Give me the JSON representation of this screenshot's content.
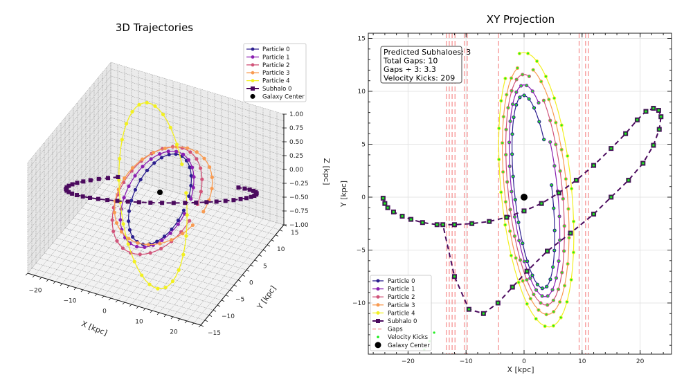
{
  "figure": {
    "background": "#ffffff"
  },
  "chart_data": [
    {
      "type": "line",
      "projection": "3d",
      "title": "3D Trajectories",
      "xlabel": "X [kpc]",
      "ylabel": "Y [kpc]",
      "zlabel": "Z [kpc]",
      "xlim": [
        -25,
        25
      ],
      "ylim": [
        -15,
        15
      ],
      "zlim": [
        -1.0,
        1.0
      ],
      "xticks": [
        "−20",
        "−10",
        "0",
        "10",
        "20"
      ],
      "yticks": [
        "−15",
        "−10",
        "−5",
        "0",
        "5",
        "10",
        "15"
      ],
      "zticks": [
        "1.00",
        "0.75",
        "0.50",
        "0.25",
        "0.00",
        "−0.25",
        "−0.50",
        "−0.75",
        "−1.00"
      ],
      "grid": true,
      "legend_position": "top-right",
      "legend": [
        {
          "label": "Particle 0",
          "color": "#2c1f8f",
          "marker": "circle"
        },
        {
          "label": "Particle 1",
          "color": "#8a1fb0",
          "marker": "circle"
        },
        {
          "label": "Particle 2",
          "color": "#d1547a",
          "marker": "circle"
        },
        {
          "label": "Particle 3",
          "color": "#f89b52",
          "marker": "circle"
        },
        {
          "label": "Particle 4",
          "color": "#f2f020",
          "marker": "circle"
        },
        {
          "label": "Subhalo 0",
          "color": "#4b0a5e",
          "marker": "square",
          "linestyle": "dashed"
        },
        {
          "label": "Galaxy Center",
          "color": "#000000",
          "marker": "circle"
        }
      ],
      "galaxy_center": [
        0,
        0,
        0
      ]
    },
    {
      "type": "line",
      "title": "XY Projection",
      "xlabel": "X [kpc]",
      "ylabel": "Y [kpc]",
      "xlim": [
        -27,
        25.5
      ],
      "ylim": [
        -14.8,
        15.5
      ],
      "xticks": [
        -20,
        -10,
        0,
        10,
        20
      ],
      "xtick_labels": [
        "−20",
        "−10",
        "0",
        "10",
        "20"
      ],
      "yticks": [
        15,
        10,
        5,
        0,
        -5,
        -10
      ],
      "ytick_labels": [
        "15",
        "10",
        "5",
        "0",
        "−5",
        "−10"
      ],
      "grid": true,
      "legend_position": "bottom-left",
      "legend": [
        {
          "label": "Particle 0",
          "color": "#2c1f8f",
          "marker": "circle"
        },
        {
          "label": "Particle 1",
          "color": "#8a1fb0",
          "marker": "circle"
        },
        {
          "label": "Particle 2",
          "color": "#d1547a",
          "marker": "circle"
        },
        {
          "label": "Particle 3",
          "color": "#f89b52",
          "marker": "circle"
        },
        {
          "label": "Particle 4",
          "color": "#f2f020",
          "marker": "circle"
        },
        {
          "label": "Subhalo 0",
          "color": "#4b0a5e",
          "marker": "square",
          "linestyle": "dashed"
        },
        {
          "label": "Gaps",
          "color": "#f7a1a1",
          "linestyle": "dashed"
        },
        {
          "label": "Velocity Kicks",
          "color": "#22ee22",
          "marker": "dot"
        },
        {
          "label": "Galaxy Center",
          "color": "#000000",
          "marker": "circle"
        }
      ],
      "info_box": [
        "Predicted Subhaloes: 3",
        "Total Gaps: 10",
        "Gaps ÷ 3: 3.3",
        "Velocity Kicks: 209"
      ],
      "gap_x": [
        -13.4,
        -12.9,
        -12.4,
        -11.9,
        -10.3,
        -9.8,
        -4.4,
        9.5,
        10.6,
        11.1
      ],
      "galaxy_center": [
        0,
        0
      ],
      "particles": [
        {
          "name": "Particle 0",
          "center": [
            1.6,
            0.5
          ],
          "a": 3.2,
          "b": 9.3,
          "angle_deg": 12,
          "phase0": 0.5
        },
        {
          "name": "Particle 1",
          "center": [
            1.8,
            0.6
          ],
          "a": 3.9,
          "b": 10.2,
          "angle_deg": 12,
          "phase0": 0.9
        },
        {
          "name": "Particle 2",
          "center": [
            1.9,
            0.7
          ],
          "a": 4.6,
          "b": 11.1,
          "angle_deg": 12,
          "phase0": 1.3
        },
        {
          "name": "Particle 3",
          "center": [
            2.0,
            0.7
          ],
          "a": 5.3,
          "b": 12.0,
          "angle_deg": 12,
          "phase0": 1.7
        },
        {
          "name": "Particle 4",
          "center": [
            2.1,
            0.7
          ],
          "a": 6.0,
          "b": 13.2,
          "angle_deg": 12,
          "phase0": 2.1
        }
      ],
      "subhalo_track": [
        [
          -24.3,
          -0.1
        ],
        [
          -24.0,
          -0.6
        ],
        [
          -23.5,
          -1.0
        ],
        [
          -22.5,
          -1.4
        ],
        [
          -21.0,
          -1.8
        ],
        [
          -19.5,
          -2.1
        ],
        [
          -17.5,
          -2.4
        ],
        [
          -15.0,
          -2.6
        ],
        [
          -12.0,
          -2.6
        ],
        [
          -9.0,
          -2.5
        ],
        [
          -6.0,
          -2.3
        ],
        [
          -3.0,
          -1.9
        ],
        [
          0.0,
          -1.3
        ],
        [
          3.0,
          -0.6
        ],
        [
          6.0,
          0.4
        ],
        [
          9.0,
          1.6
        ],
        [
          12.0,
          3.0
        ],
        [
          15.0,
          4.6
        ],
        [
          17.5,
          6.0
        ],
        [
          19.5,
          7.3
        ],
        [
          21.0,
          8.1
        ],
        [
          22.3,
          8.4
        ],
        [
          23.2,
          8.2
        ],
        [
          23.6,
          7.6
        ],
        [
          23.3,
          6.4
        ],
        [
          22.3,
          4.9
        ],
        [
          20.5,
          3.2
        ],
        [
          18.0,
          1.6
        ],
        [
          15.0,
          0.0
        ],
        [
          12.0,
          -1.6
        ],
        [
          8.0,
          -3.4
        ],
        [
          4.0,
          -5.1
        ],
        [
          0.5,
          -7.0
        ],
        [
          -2.0,
          -8.5
        ],
        [
          -4.5,
          -10.0
        ],
        [
          -7.0,
          -11.0
        ],
        [
          -9.5,
          -10.6
        ],
        [
          -12.0,
          -7.5
        ],
        [
          -14.0,
          -2.6
        ],
        [
          -15.5,
          -12.8
        ]
      ]
    }
  ]
}
